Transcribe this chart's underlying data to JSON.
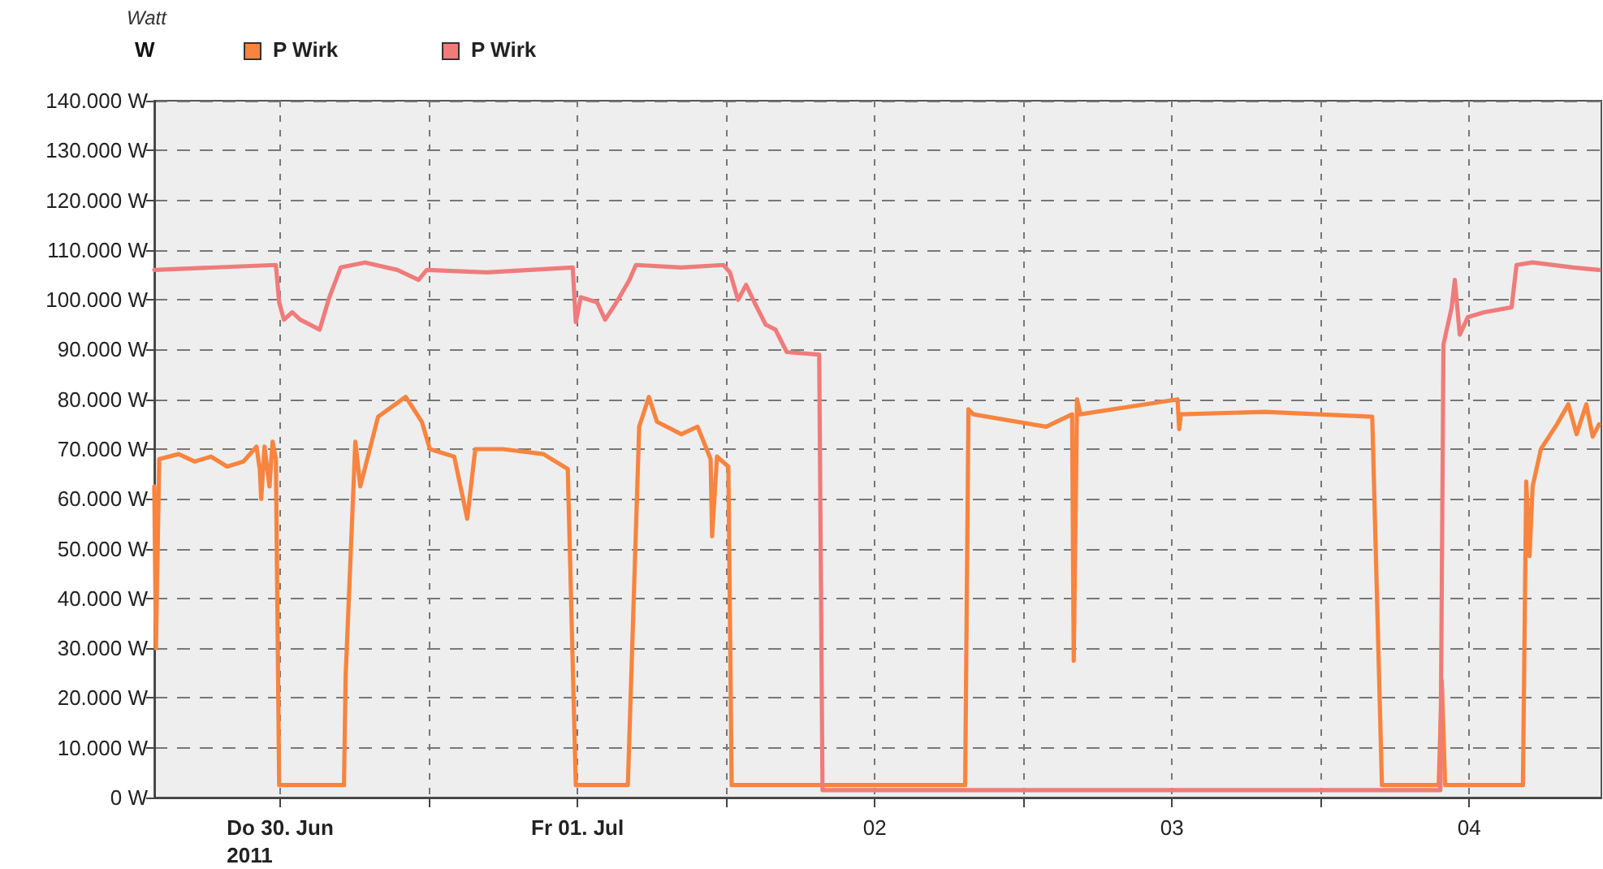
{
  "chart_data": {
    "type": "line",
    "ylabel": "Watt",
    "annotations": [
      "W"
    ],
    "xlim": [
      "2011-06-30T01:50",
      "2011-07-04T22:40"
    ],
    "xticks": [
      {
        "value": "2011-06-30T12:00",
        "label": "Do 30. Jun\n2011"
      },
      {
        "value": "2011-07-01T00:00",
        "label": null
      },
      {
        "value": "2011-07-01T12:00",
        "label": "Fr 01. Jul"
      },
      {
        "value": "2011-07-02T00:00",
        "label": null
      },
      {
        "value": "2011-07-02T12:00",
        "label": "02"
      },
      {
        "value": "2011-07-03T00:00",
        "label": null
      },
      {
        "value": "2011-07-03T12:00",
        "label": "03"
      },
      {
        "value": "2011-07-04T00:00",
        "label": null
      },
      {
        "value": "2011-07-04T12:00",
        "label": "04"
      }
    ],
    "ylim": [
      0,
      140000
    ],
    "yticks": [
      {
        "value": 0,
        "label": "0 W"
      },
      {
        "value": 10000,
        "label": "10.000 W"
      },
      {
        "value": 20000,
        "label": "20.000 W"
      },
      {
        "value": 30000,
        "label": "30.000 W"
      },
      {
        "value": 40000,
        "label": "40.000 W"
      },
      {
        "value": 50000,
        "label": "50.000 W"
      },
      {
        "value": 60000,
        "label": "60.000 W"
      },
      {
        "value": 70000,
        "label": "70.000 W"
      },
      {
        "value": 80000,
        "label": "80.000 W"
      },
      {
        "value": 90000,
        "label": "90.000 W"
      },
      {
        "value": 100000,
        "label": "100.000 W"
      },
      {
        "value": 110000,
        "label": "110.000 W"
      },
      {
        "value": 120000,
        "label": "120.000 W"
      },
      {
        "value": 130000,
        "label": "130.000 W"
      },
      {
        "value": 140000,
        "label": "140.000 W"
      }
    ],
    "grid": true,
    "legend": "top left",
    "marker": "none",
    "line_style": "solid",
    "series": [
      {
        "name": "P Wirk",
        "color": "#f7843f",
        "x": [
          "2011-06-30T01:50",
          "2011-06-30T01:58",
          "2011-06-30T02:14",
          "2011-06-30T03:48",
          "2011-06-30T05:06",
          "2011-06-30T06:25",
          "2011-06-30T07:43",
          "2011-06-30T09:02",
          "2011-06-30T10:05",
          "2011-06-30T10:21",
          "2011-06-30T10:28",
          "2011-06-30T10:44",
          "2011-06-30T11:08",
          "2011-06-30T11:23",
          "2011-06-30T11:39",
          "2011-06-30T11:55",
          "2011-06-30T17:09",
          "2011-06-30T17:17",
          "2011-06-30T18:04",
          "2011-06-30T18:28",
          "2011-06-30T19:54",
          "2011-06-30T22:08",
          "2011-06-30T23:26",
          "2011-07-01T00:05",
          "2011-07-01T02:03",
          "2011-07-01T03:06",
          "2011-07-01T03:45",
          "2011-07-01T05:59",
          "2011-07-01T09:15",
          "2011-07-01T11:13",
          "2011-07-01T11:52",
          "2011-07-01T16:04",
          "2011-07-01T16:59",
          "2011-07-01T17:46",
          "2011-07-01T18:25",
          "2011-07-01T20:23",
          "2011-07-01T21:42",
          "2011-07-01T22:45",
          "2011-07-01T22:52",
          "2011-07-01T23:16",
          "2011-07-02T00:11",
          "2011-07-02T00:27",
          "2011-07-02T19:18",
          "2011-07-02T19:34",
          "2011-07-02T19:57",
          "2011-07-03T01:51",
          "2011-07-03T03:56",
          "2011-07-03T04:04",
          "2011-07-03T04:20",
          "2011-07-03T04:36",
          "2011-07-03T12:27",
          "2011-07-03T12:35",
          "2011-07-03T12:43",
          "2011-07-03T19:31",
          "2011-07-04T04:10",
          "2011-07-04T04:57",
          "2011-07-04T09:32",
          "2011-07-04T09:47",
          "2011-07-04T10:03",
          "2011-07-04T16:20",
          "2011-07-04T16:36",
          "2011-07-04T16:52",
          "2011-07-04T17:07",
          "2011-07-04T17:47",
          "2011-07-04T19:05",
          "2011-07-04T20:00",
          "2011-07-04T20:40",
          "2011-07-04T21:27",
          "2011-07-04T21:58",
          "2011-07-04T22:29"
        ],
        "values": [
          62500,
          30000,
          68000,
          69000,
          67500,
          68500,
          66500,
          67500,
          70500,
          66000,
          60000,
          70500,
          62500,
          71500,
          68000,
          2500,
          2500,
          24500,
          71500,
          62500,
          76500,
          80500,
          75500,
          70000,
          68500,
          56000,
          70000,
          70000,
          69000,
          66000,
          2500,
          2500,
          74500,
          80500,
          75500,
          73000,
          74500,
          68000,
          52500,
          68500,
          66500,
          2500,
          2500,
          78000,
          77000,
          74500,
          77000,
          27500,
          80000,
          77000,
          80000,
          74000,
          77000,
          77500,
          76500,
          2500,
          2500,
          23500,
          2500,
          2500,
          63500,
          48500,
          62500,
          70000,
          75000,
          79000,
          73000,
          79000,
          72500,
          75000
        ]
      },
      {
        "name": "P Wirk",
        "color": "#f07b7b",
        "x": [
          "2011-06-30T01:50",
          "2011-06-30T11:39",
          "2011-06-30T11:55",
          "2011-06-30T12:18",
          "2011-06-30T12:58",
          "2011-06-30T13:37",
          "2011-06-30T15:11",
          "2011-06-30T15:58",
          "2011-06-30T16:53",
          "2011-06-30T18:51",
          "2011-06-30T21:28",
          "2011-06-30T23:10",
          "2011-06-30T23:50",
          "2011-07-01T04:40",
          "2011-07-01T11:37",
          "2011-07-01T11:52",
          "2011-07-01T12:16",
          "2011-07-01T13:35",
          "2011-07-01T14:14",
          "2011-07-01T15:09",
          "2011-07-01T16:12",
          "2011-07-01T16:43",
          "2011-07-01T20:23",
          "2011-07-01T23:47",
          "2011-07-02T00:19",
          "2011-07-02T00:58",
          "2011-07-02T01:37",
          "2011-07-02T02:17",
          "2011-07-02T03:12",
          "2011-07-02T03:59",
          "2011-07-02T04:54",
          "2011-07-02T07:31",
          "2011-07-02T07:47",
          "2011-07-04T09:16",
          "2011-07-04T09:40",
          "2011-07-04T09:55",
          "2011-07-04T10:35",
          "2011-07-04T10:50",
          "2011-07-04T11:14",
          "2011-07-04T11:53",
          "2011-07-04T13:12",
          "2011-07-04T15:25",
          "2011-07-04T15:49",
          "2011-07-04T17:07",
          "2011-07-04T20:24",
          "2011-07-04T22:29"
        ],
        "values": [
          106000,
          107000,
          99500,
          96000,
          97500,
          96000,
          94000,
          100500,
          106500,
          107500,
          106000,
          104000,
          106000,
          105500,
          106500,
          95500,
          100500,
          99500,
          96000,
          99500,
          104000,
          107000,
          106500,
          107000,
          105500,
          100000,
          103000,
          99500,
          95000,
          94000,
          89500,
          89000,
          1500,
          1500,
          1500,
          91000,
          98500,
          104000,
          93000,
          96500,
          97500,
          98500,
          107000,
          107500,
          106500,
          106000
        ]
      }
    ]
  }
}
